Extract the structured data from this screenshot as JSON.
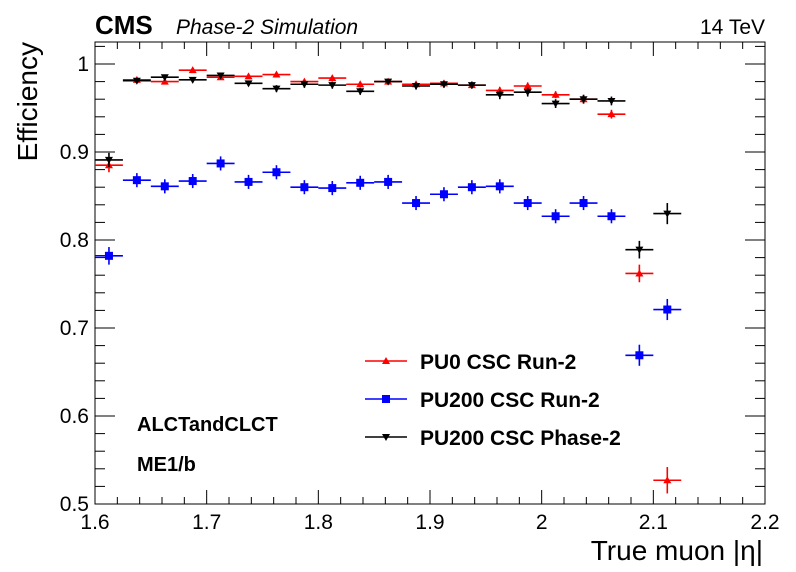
{
  "header": {
    "experiment": "CMS",
    "status": "Phase-2 Simulation",
    "energy": "14 TeV"
  },
  "annotations": [
    "ALCTandCLCT",
    "ME1/b"
  ],
  "colors": {
    "pu0_run2": "#ff0000",
    "pu200_run2": "#0000ff",
    "pu200_phase2": "#000000"
  },
  "chart_data": {
    "type": "scatter",
    "xlabel": "True muon |η|",
    "ylabel": "Efficiency",
    "xlim": [
      1.6,
      2.2
    ],
    "ylim": [
      0.5,
      1.025
    ],
    "x_ticks": [
      "1.6",
      "1.7",
      "1.8",
      "1.9",
      "2",
      "2.1",
      "2.2"
    ],
    "y_ticks": [
      "0.5",
      "0.6",
      "0.7",
      "0.8",
      "0.9",
      "1"
    ],
    "grid": false,
    "legend_position": "bottom-center",
    "x": [
      1.6125,
      1.6375,
      1.6625,
      1.6875,
      1.7125,
      1.7375,
      1.7625,
      1.7875,
      1.8125,
      1.8375,
      1.8625,
      1.8875,
      1.9125,
      1.9375,
      1.9625,
      1.9875,
      2.0125,
      2.0375,
      2.0625,
      2.0875,
      2.1125
    ],
    "x_error": 0.0125,
    "series": [
      {
        "name": "PU0 CSC Run-2",
        "marker": "triangle-up",
        "x": [
          1.6125,
          1.6375,
          1.6625,
          1.6875,
          1.7125,
          1.7375,
          1.7625,
          1.7875,
          1.8125,
          1.8375,
          1.8625,
          1.8875,
          1.9125,
          1.9375,
          1.9625,
          1.9875,
          2.0125,
          2.0375,
          2.0625,
          2.0875,
          2.1125
        ],
        "values": [
          0.885,
          0.982,
          0.98,
          0.993,
          0.985,
          0.986,
          0.988,
          0.98,
          0.984,
          0.977,
          0.98,
          0.977,
          0.978,
          0.976,
          0.97,
          0.975,
          0.965,
          0.96,
          0.943,
          0.762,
          0.527
        ],
        "errors": [
          0.008,
          0.003,
          0.003,
          0.002,
          0.003,
          0.003,
          0.002,
          0.003,
          0.003,
          0.003,
          0.003,
          0.003,
          0.003,
          0.003,
          0.004,
          0.004,
          0.004,
          0.005,
          0.005,
          0.01,
          0.015
        ]
      },
      {
        "name": "PU200 CSC Run-2",
        "marker": "square",
        "x": [
          1.6125,
          1.6375,
          1.6625,
          1.6875,
          1.7125,
          1.7375,
          1.7625,
          1.7875,
          1.8125,
          1.8375,
          1.8625,
          1.8875,
          1.9125,
          1.9375,
          1.9625,
          1.9875,
          2.0125,
          2.0375,
          2.0625,
          2.0875,
          2.1125
        ],
        "values": [
          0.782,
          0.868,
          0.861,
          0.867,
          0.887,
          0.866,
          0.877,
          0.86,
          0.859,
          0.865,
          0.866,
          0.842,
          0.852,
          0.86,
          0.861,
          0.842,
          0.827,
          0.842,
          0.827,
          0.669,
          0.721
        ],
        "errors": [
          0.01,
          0.008,
          0.008,
          0.008,
          0.008,
          0.008,
          0.008,
          0.008,
          0.008,
          0.008,
          0.008,
          0.008,
          0.008,
          0.008,
          0.008,
          0.008,
          0.008,
          0.008,
          0.008,
          0.012,
          0.012
        ]
      },
      {
        "name": "PU200 CSC Phase-2",
        "marker": "triangle-down",
        "x": [
          1.6125,
          1.6375,
          1.6625,
          1.6875,
          1.7125,
          1.7375,
          1.7625,
          1.7875,
          1.8125,
          1.8375,
          1.8625,
          1.8875,
          1.9125,
          1.9375,
          1.9625,
          1.9875,
          2.0125,
          2.0375,
          2.0625,
          2.0875,
          2.1125
        ],
        "values": [
          0.891,
          0.981,
          0.985,
          0.982,
          0.987,
          0.978,
          0.972,
          0.977,
          0.976,
          0.969,
          0.98,
          0.975,
          0.977,
          0.976,
          0.965,
          0.968,
          0.955,
          0.96,
          0.958,
          0.789,
          0.83
        ],
        "errors": [
          0.008,
          0.003,
          0.003,
          0.003,
          0.003,
          0.003,
          0.004,
          0.004,
          0.004,
          0.004,
          0.003,
          0.004,
          0.004,
          0.004,
          0.005,
          0.005,
          0.005,
          0.005,
          0.005,
          0.01,
          0.012
        ]
      }
    ]
  }
}
